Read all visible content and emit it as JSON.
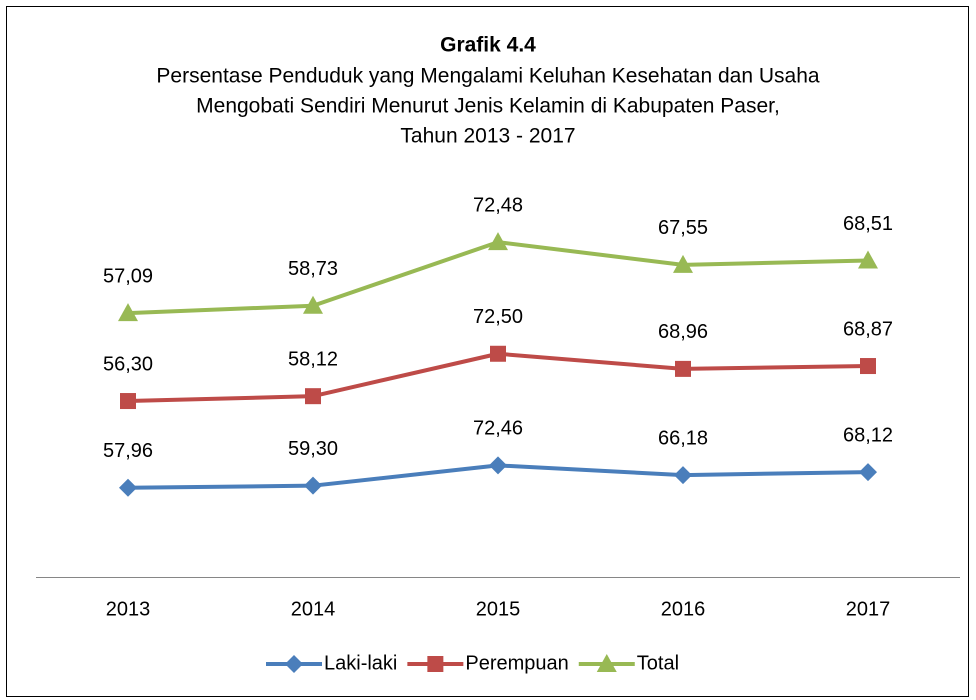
{
  "chart_data": {
    "type": "line",
    "stacked": true,
    "title": "Grafik 4.4",
    "subtitle": [
      "Persentase Penduduk yang Mengalami Keluhan Kesehatan dan Usaha",
      "Mengobati Sendiri Menurut Jenis Kelamin di Kabupaten Paser,",
      "Tahun 2013 - 2017"
    ],
    "categories": [
      "2013",
      "2014",
      "2015",
      "2016",
      "2017"
    ],
    "ylim": [
      0,
      250
    ],
    "legend": "bottom",
    "series": [
      {
        "name": "Laki-laki",
        "color": "#4a7ebb",
        "marker": "diamond",
        "values": [
          57.96,
          59.3,
          72.46,
          66.18,
          68.12
        ],
        "value_labels": [
          "57,96",
          "59,30",
          "72,46",
          "66,18",
          "68,12"
        ]
      },
      {
        "name": "Perempuan",
        "color": "#be4b48",
        "marker": "square",
        "values": [
          56.3,
          58.12,
          72.5,
          68.96,
          68.87
        ],
        "value_labels": [
          "56,30",
          "58,12",
          "72,50",
          "68,96",
          "68,87"
        ]
      },
      {
        "name": "Total",
        "color": "#98b954",
        "marker": "triangle",
        "values": [
          57.09,
          58.73,
          72.48,
          67.55,
          68.51
        ],
        "value_labels": [
          "57,09",
          "58,73",
          "72,48",
          "67,55",
          "68,51"
        ]
      }
    ]
  }
}
